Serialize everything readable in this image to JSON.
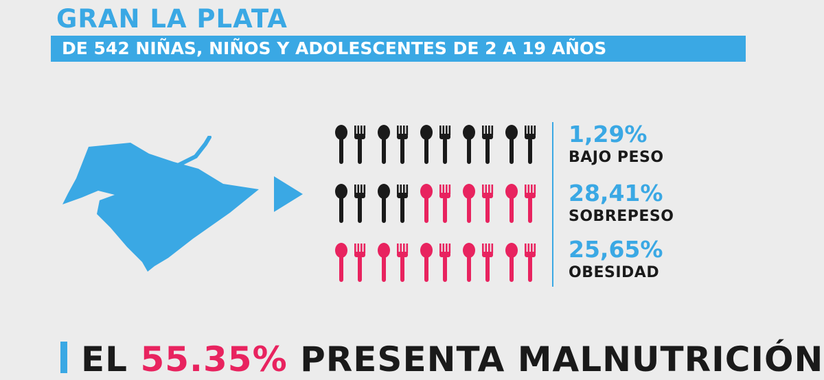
{
  "header": {
    "title": "GRAN LA PLATA",
    "subtitle": "DE 542 NIÑAS, NIÑOS Y ADOLESCENTES DE 2 A 19 AÑOS"
  },
  "icons": {
    "pictogram": "spoon-and-fork-icon",
    "map": "gran-la-plata-map",
    "arrow": "arrow-right-icon"
  },
  "pictogram_rows": [
    [
      "dark",
      "dark",
      "dark",
      "dark",
      "dark"
    ],
    [
      "dark",
      "dark",
      "pink",
      "pink",
      "pink"
    ],
    [
      "pink",
      "pink",
      "pink",
      "pink",
      "pink"
    ]
  ],
  "stats": [
    {
      "percent": "1,29%",
      "label": "BAJO PESO"
    },
    {
      "percent": "28,41%",
      "label": "SOBREPESO"
    },
    {
      "percent": "25,65%",
      "label": "OBESIDAD"
    }
  ],
  "footer": {
    "prefix": "EL",
    "highlight": "55.35%",
    "suffix": "PRESENTA MALNUTRICIÓN"
  },
  "colors": {
    "accent_blue": "#3aa8e4",
    "accent_pink": "#e8235f",
    "dark": "#1a1a1a",
    "background": "#ececec"
  }
}
